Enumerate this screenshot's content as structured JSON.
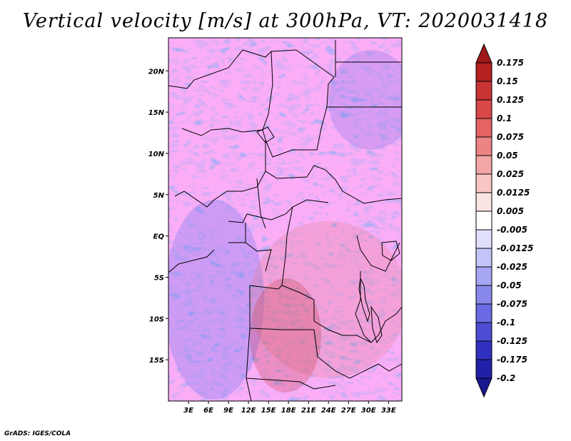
{
  "title": "Vertical velocity [m/s] at 300hPa, VT: 2020031418",
  "credit": "GrADS: IGES/COLA",
  "map": {
    "lon_range": [
      0,
      35
    ],
    "lat_range": [
      -20,
      24
    ],
    "lat_ticks": [
      {
        "value": 20,
        "label": "20N"
      },
      {
        "value": 15,
        "label": "15N"
      },
      {
        "value": 10,
        "label": "10N"
      },
      {
        "value": 5,
        "label": "5N"
      },
      {
        "value": 0,
        "label": "EQ"
      },
      {
        "value": -5,
        "label": "5S"
      },
      {
        "value": -10,
        "label": "10S"
      },
      {
        "value": -15,
        "label": "15S"
      }
    ],
    "lon_ticks": [
      {
        "value": 3,
        "label": "3E"
      },
      {
        "value": 6,
        "label": "6E"
      },
      {
        "value": 9,
        "label": "9E"
      },
      {
        "value": 12,
        "label": "12E"
      },
      {
        "value": 15,
        "label": "15E"
      },
      {
        "value": 18,
        "label": "18E"
      },
      {
        "value": 21,
        "label": "21E"
      },
      {
        "value": 24,
        "label": "24E"
      },
      {
        "value": 27,
        "label": "27E"
      },
      {
        "value": 30,
        "label": "30E"
      },
      {
        "value": 33,
        "label": "33E"
      }
    ]
  },
  "colorbar": {
    "levels": [
      "0.175",
      "0.15",
      "0.125",
      "0.1",
      "0.075",
      "0.05",
      "0.025",
      "0.0125",
      "0.005",
      "-0.005",
      "-0.0125",
      "-0.025",
      "-0.05",
      "-0.075",
      "-0.1",
      "-0.125",
      "-0.175",
      "-0.2"
    ],
    "colors": [
      "#a01818",
      "#b42020",
      "#c83434",
      "#d84848",
      "#e46464",
      "#ec8484",
      "#f4a6a6",
      "#f8c6c6",
      "#fce4e4",
      "#ffffff",
      "#e0e0fc",
      "#c4c4f8",
      "#a6a6f4",
      "#8888ec",
      "#6a6ae2",
      "#4c4cd4",
      "#3030c0",
      "#2020a8",
      "#181890"
    ]
  }
}
